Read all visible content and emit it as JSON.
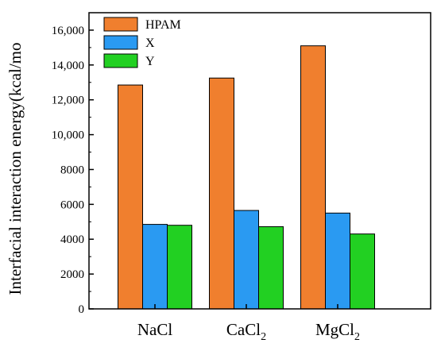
{
  "chart_data": {
    "type": "bar",
    "ylabel": "Interfacial interaction energy(kcal/mo",
    "xlabel": "",
    "ylim": [
      0,
      17000
    ],
    "yticks": [
      0,
      2000,
      4000,
      6000,
      8000,
      "10,000",
      "12,000",
      "14,000",
      "16,000"
    ],
    "ytick_values": [
      0,
      2000,
      4000,
      6000,
      8000,
      10000,
      12000,
      14000,
      16000
    ],
    "categories": [
      {
        "base": "NaCl",
        "sub": ""
      },
      {
        "base": "CaCl",
        "sub": "2"
      },
      {
        "base": "MgCl",
        "sub": "2"
      }
    ],
    "series": [
      {
        "name": "HPAM",
        "color": "#f07f2e",
        "values": [
          12850,
          13250,
          15100
        ]
      },
      {
        "name": "X",
        "color": "#2a9af2",
        "values": [
          4850,
          5650,
          5500
        ]
      },
      {
        "name": "Y",
        "color": "#22d022",
        "values": [
          4800,
          4720,
          4300
        ]
      }
    ],
    "legend": "top-left",
    "grid": false
  }
}
